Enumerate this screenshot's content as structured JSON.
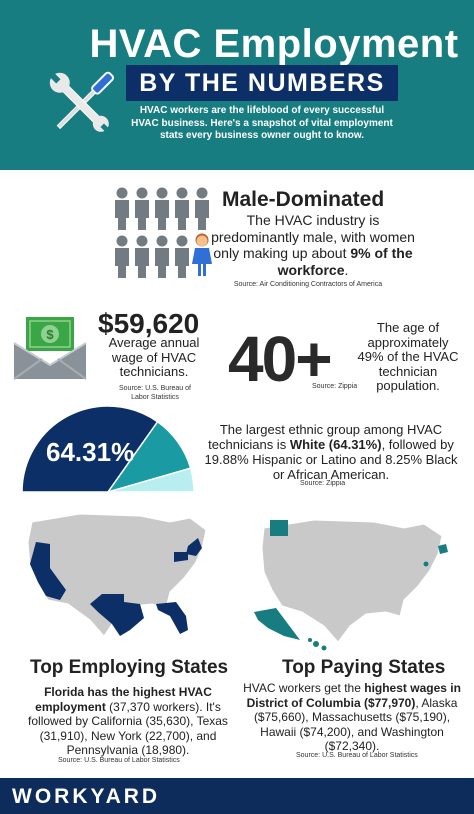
{
  "header": {
    "title_line1": "HVAC Employment",
    "title_line2": "BY THE NUMBERS",
    "intro": "HVAC workers are the lifeblood of every successful HVAC business. Here's a snapshot of vital employment stats every business owner ought to know."
  },
  "male_dominated": {
    "title": "Male-Dominated",
    "text_pre": "The HVAC industry is predominantly male, with women only making up about ",
    "text_bold": "9% of the workforce",
    "text_post": ".",
    "source": "Source: Air Conditioning Contractors of America"
  },
  "wage": {
    "value": "$59,620",
    "text": "Average annual wage of HVAC technicians.",
    "source": "Source: U.S. Bureau of Labor Statistics"
  },
  "age": {
    "value": "40+",
    "text": "The age of approximately 49% of the HVAC technician population.",
    "source": "Source: Zippia"
  },
  "ethnicity": {
    "pie_label": "64.31%",
    "text_pre": "The largest ethnic group among HVAC technicians is ",
    "text_bold": "White (64.31%)",
    "text_post": ", followed by 19.88% Hispanic or Latino and 8.25% Black or African American.",
    "source": "Source: Zippia",
    "shares": [
      64.31,
      19.88,
      8.25
    ]
  },
  "top_employing": {
    "title": "Top Employing States",
    "text_bold": "Florida has the highest HVAC employment",
    "text_post": " (37,370 workers). It's followed by California (35,630), Texas (31,910), New York (22,700), and Pennsylvania (18,980).",
    "source": "Source: U.S. Bureau of Labor Statistics"
  },
  "top_paying": {
    "title": "Top Paying States",
    "text_pre": "HVAC workers get the ",
    "text_bold": "highest wages in District of Columbia ($77,970)",
    "text_post": ", Alaska ($75,660), Massachusetts ($75,190), Hawaii ($74,200), and Washington ($72,340).",
    "source": "Source: U.S. Bureau of Labor Statistics"
  },
  "footer": {
    "brand": "WORKYARD"
  },
  "colors": {
    "teal": "#187d81",
    "navy": "#0b2f66",
    "light_teal": "#b8eef0",
    "map_gray": "#c9c9c9"
  }
}
